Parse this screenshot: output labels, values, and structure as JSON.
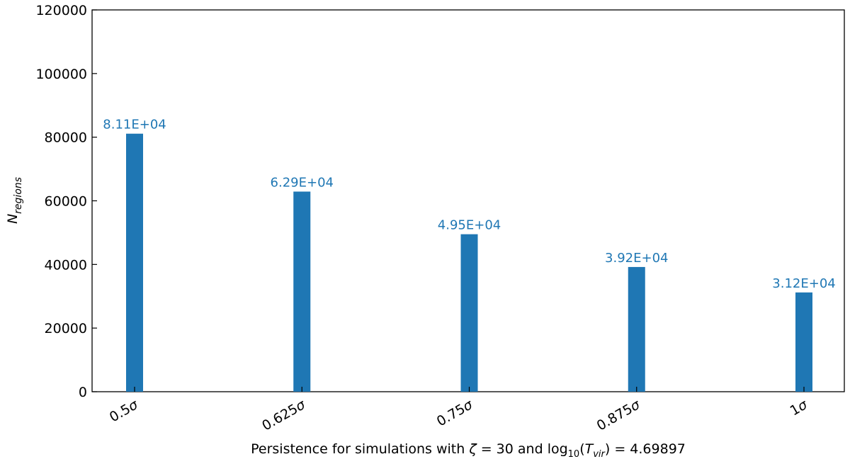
{
  "chart_data": {
    "type": "bar",
    "categories": [
      "0.5σ",
      "0.625σ",
      "0.75σ",
      "0.875σ",
      "1σ"
    ],
    "values": [
      81100,
      62900,
      49500,
      39200,
      31200
    ],
    "data_labels": [
      "8.11E+04",
      "6.29E+04",
      "4.95E+04",
      "3.92E+04",
      "3.12E+04"
    ],
    "ylim": [
      0,
      120000
    ],
    "yticks": [
      0,
      20000,
      40000,
      60000,
      80000,
      100000,
      120000
    ],
    "ytick_labels": [
      "0",
      "20000",
      "40000",
      "60000",
      "80000",
      "100000",
      "120000"
    ],
    "xlabel": {
      "prefix": "Persistence for simulations with ",
      "zeta_symbol": "ζ",
      "zeta_rel": " = 30 and log",
      "log_base": "10",
      "open_paren": "(",
      "t_symbol": "T",
      "t_sub": "vir",
      "close_rel": ") = 4.69897"
    },
    "ylabel": {
      "symbol": "N",
      "sub": "regions"
    },
    "bar_color": "#1f77b4",
    "label_color": "#1f77b4",
    "grid": false,
    "legend": null
  }
}
